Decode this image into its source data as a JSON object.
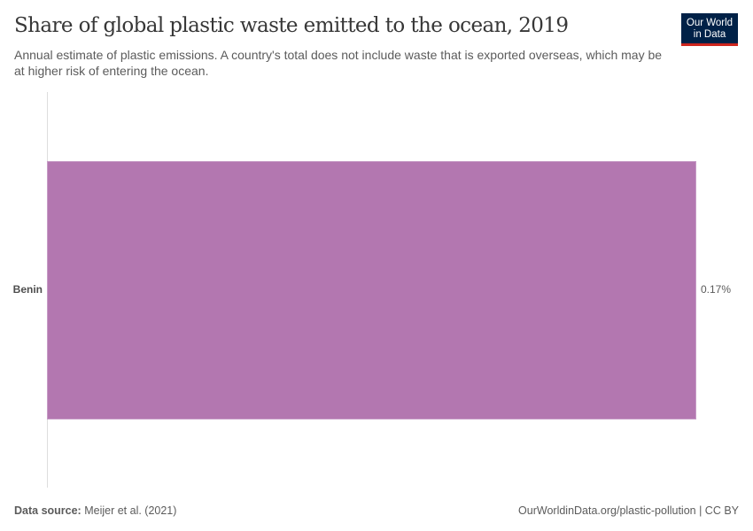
{
  "header": {
    "title": "Share of global plastic waste emitted to the ocean, 2019",
    "subtitle": "Annual estimate of plastic emissions. A country's total does not include waste that is exported overseas, which may be at higher risk of entering the ocean.",
    "logo_line1": "Our World",
    "logo_line2": "in Data"
  },
  "colors": {
    "bar": "#b377b0",
    "logo_bg": "#002147",
    "logo_accent": "#ce261e",
    "axis": "#dddddd"
  },
  "chart_data": {
    "type": "bar",
    "orientation": "horizontal",
    "title": "Share of global plastic waste emitted to the ocean, 2019",
    "subtitle": "Annual estimate of plastic emissions. A country's total does not include waste that is exported overseas, which may be at higher risk of entering the ocean.",
    "categories": [
      "Benin"
    ],
    "values": [
      0.17
    ],
    "value_labels": [
      "0.17%"
    ],
    "unit": "%",
    "xlabel": "",
    "ylabel": "",
    "xlim": [
      0,
      0.17
    ],
    "grid": false,
    "legend": null
  },
  "bars": [
    {
      "label": "Benin",
      "value": 0.17,
      "value_label": "0.17%"
    }
  ],
  "footer": {
    "source_label": "Data source:",
    "source_value": " Meijer et al. (2021)",
    "attribution": "OurWorldinData.org/plastic-pollution | CC BY"
  }
}
